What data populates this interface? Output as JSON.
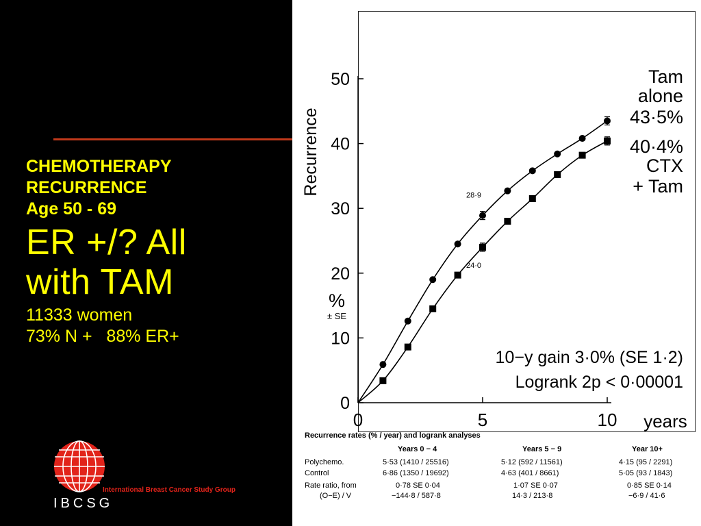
{
  "slide": {
    "heading_lines": [
      "CHEMOTHERAPY",
      "RECURRENCE",
      "Age 50 - 69"
    ],
    "big_lines": [
      "ER +/? All",
      "with TAM"
    ],
    "detail_lines": [
      "11333 women",
      "73% N +   88% ER+"
    ],
    "accent_rule_color": "#c0391b",
    "text_color": "#ffff00"
  },
  "logo": {
    "icon": "globe-logo-icon",
    "caption": "International Breast Cancer Study Group",
    "acronym": "IBCSG",
    "color": "#e2231a"
  },
  "chart_data": {
    "type": "line",
    "xlabel": "years",
    "ylabel": "Recurrence",
    "ylabel_sub": "%",
    "ylabel_se": "± SE",
    "xlim": [
      0,
      10
    ],
    "ylim": [
      0,
      50
    ],
    "xticks": [
      "0",
      "5",
      "10"
    ],
    "yticks": [
      "0",
      "10",
      "20",
      "30",
      "40",
      "50"
    ],
    "x": [
      0,
      1,
      2,
      3,
      4,
      5,
      6,
      7,
      8,
      9,
      10
    ],
    "series": [
      {
        "legend_lines": [
          "Tam",
          "alone",
          "43·5%"
        ],
        "marker": "circle",
        "values": [
          0,
          5.9,
          12.6,
          19.0,
          24.5,
          28.9,
          32.7,
          35.8,
          38.4,
          40.8,
          43.5
        ],
        "point_label": "28·9",
        "point_label_x": 5
      },
      {
        "legend_lines": [
          "40·4%",
          "CTX",
          "+ Tam"
        ],
        "marker": "square",
        "values": [
          0,
          3.4,
          8.6,
          14.5,
          19.7,
          24.0,
          28.0,
          31.5,
          35.2,
          38.2,
          40.4
        ],
        "point_label": "24·0",
        "point_label_x": 5
      }
    ],
    "annotations": [
      "10−y gain 3·0% (SE 1·2)",
      "Logrank 2p < 0·00001"
    ]
  },
  "table": {
    "caption": "Recurrence rates (% / year) and logrank analyses",
    "columns": [
      "Years 0 − 4",
      "Years 5 − 9",
      "Year 10+"
    ],
    "rows": [
      {
        "label": "Polychemo.",
        "cells": [
          "5·53 (1410 / 25516)",
          "5·12 (592 / 11561)",
          "4·15 (95 / 2291)"
        ]
      },
      {
        "label": "Control",
        "cells": [
          "6·86 (1350 / 19692)",
          "4·63 (401 / 8661)",
          "5·05 (93 / 1843)"
        ]
      },
      {
        "label": "Rate ratio, from",
        "cells": [
          "0·78 SE 0·04",
          "1·07 SE 0·07",
          "0·85 SE 0·14"
        ]
      },
      {
        "label": "(O−E) / V",
        "cells": [
          "−144·8 / 587·8",
          "14·3 / 213·8",
          "−6·9 / 41·6"
        ]
      }
    ]
  }
}
